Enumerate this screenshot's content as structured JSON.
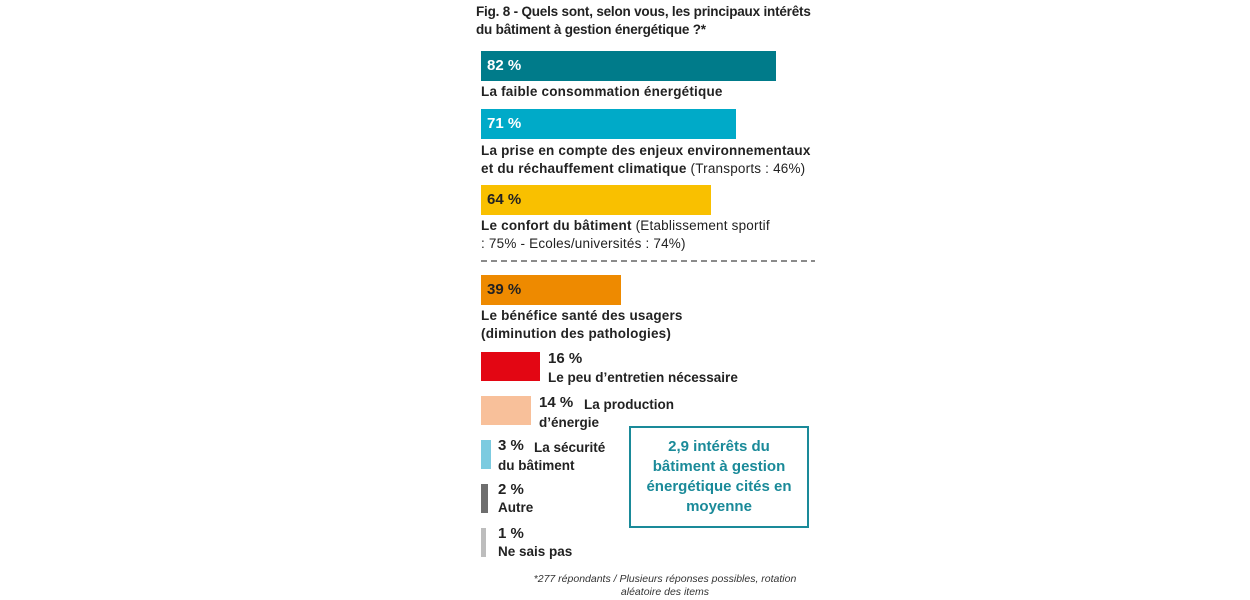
{
  "title": "Fig. 8 - Quels sont, selon vous, les principaux intérêts du bâtiment à gestion énergétique ?*",
  "chart_data": {
    "type": "bar",
    "orientation": "horizontal",
    "unit": "%",
    "items": [
      {
        "value": 82,
        "value_label": "82 %",
        "label": "La faible consommation énergétique",
        "detail": "",
        "color": "#007b8a"
      },
      {
        "value": 71,
        "value_label": "71 %",
        "label": "La prise en compte des enjeux environnementaux et du réchauffement climatique",
        "detail": "(Transports : 46%)",
        "color": "#00aac8"
      },
      {
        "value": 64,
        "value_label": "64 %",
        "label": "Le confort du bâtiment",
        "detail": "(Etablissement sportif : 75% - Ecoles/universités : 74%)",
        "color": "#f9c000"
      },
      {
        "value": 39,
        "value_label": "39 %",
        "label": "Le bénéfice santé des usagers (diminution des pathologies)",
        "detail": "",
        "color": "#ee8a00"
      },
      {
        "value": 16,
        "value_label": "16 %",
        "label": "Le peu d’entretien nécessaire",
        "detail": "",
        "color": "#e30613"
      },
      {
        "value": 14,
        "value_label": "14 %",
        "label": "La production d’énergie",
        "detail": "",
        "color": "#f8c09a"
      },
      {
        "value": 3,
        "value_label": "3 %",
        "label": "La sécurité du bâtiment",
        "detail": "",
        "color": "#7ccbe0"
      },
      {
        "value": 2,
        "value_label": "2 %",
        "label": "Autre",
        "detail": "",
        "color": "#6e6e6e"
      },
      {
        "value": 1,
        "value_label": "1 %",
        "label": "Ne sais pas",
        "detail": "",
        "color": "#bdbdbd"
      }
    ],
    "separator_after_index": 2
  },
  "callout": "2,9 intérêts du bâtiment à gestion énergétique cités en moyenne",
  "footnote": "*277 répondants / Plusieurs réponses possibles, rotation aléatoire des items"
}
